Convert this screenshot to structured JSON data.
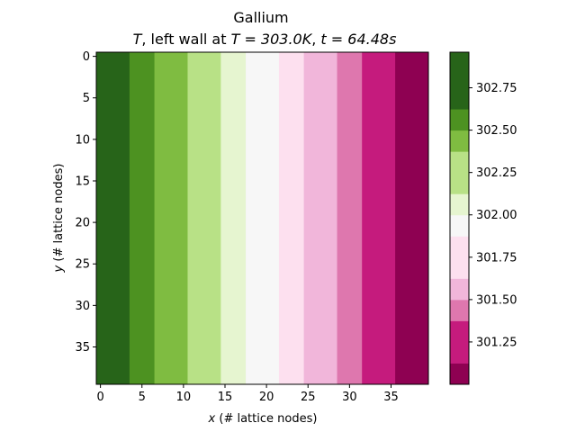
{
  "chart_data": {
    "type": "heatmap",
    "title": "Gallium",
    "subtitle": "T, left wall at T = 303.0K, t = 64.48s",
    "subtitle_parts": {
      "t_symbol": "T",
      "mid_text": ", left wall at ",
      "t_eq": "T = 303.0K",
      "sep": ", ",
      "time_eq": "t = 64.48s"
    },
    "xlabel": "x (# lattice nodes)",
    "xlabel_parts": {
      "var": "x",
      "rest": " (# lattice nodes)"
    },
    "ylabel": "y (# lattice nodes)",
    "ylabel_parts": {
      "var": "y",
      "rest": " (# lattice nodes)"
    },
    "xlim": [
      -0.5,
      39.5
    ],
    "ylim": [
      39.5,
      -0.5
    ],
    "xticks": [
      0,
      5,
      10,
      15,
      20,
      25,
      30,
      35
    ],
    "yticks": [
      0,
      5,
      10,
      15,
      20,
      25,
      30,
      35
    ],
    "colormap": "PiYG",
    "bands": [
      {
        "x_start": -0.5,
        "x_end": 3.5,
        "color": "#276419"
      },
      {
        "x_start": 3.5,
        "x_end": 6.5,
        "color": "#4d9221"
      },
      {
        "x_start": 6.5,
        "x_end": 10.5,
        "color": "#7fbc41"
      },
      {
        "x_start": 10.5,
        "x_end": 14.5,
        "color": "#b8e186"
      },
      {
        "x_start": 14.5,
        "x_end": 17.5,
        "color": "#e6f5d0"
      },
      {
        "x_start": 17.5,
        "x_end": 21.5,
        "color": "#f7f7f7"
      },
      {
        "x_start": 21.5,
        "x_end": 24.5,
        "color": "#fde0ef"
      },
      {
        "x_start": 24.5,
        "x_end": 28.5,
        "color": "#f1b6da"
      },
      {
        "x_start": 28.5,
        "x_end": 31.5,
        "color": "#de77ae"
      },
      {
        "x_start": 31.5,
        "x_end": 35.5,
        "color": "#c51b7d"
      },
      {
        "x_start": 35.5,
        "x_end": 39.5,
        "color": "#8e0152"
      }
    ],
    "colorbar": {
      "range": [
        301.0,
        302.96
      ],
      "levels": [
        301.0,
        301.125,
        301.375,
        301.5,
        301.625,
        301.875,
        302.0,
        302.125,
        302.375,
        302.5,
        302.625,
        302.96
      ],
      "colors": [
        "#8e0152",
        "#c51b7d",
        "#de77ae",
        "#f1b6da",
        "#fde0ef",
        "#f7f7f7",
        "#e6f5d0",
        "#b8e186",
        "#7fbc41",
        "#4d9221",
        "#276419"
      ],
      "ticks": [
        "301.25",
        "301.50",
        "301.75",
        "302.00",
        "302.25",
        "302.50",
        "302.75"
      ]
    }
  }
}
